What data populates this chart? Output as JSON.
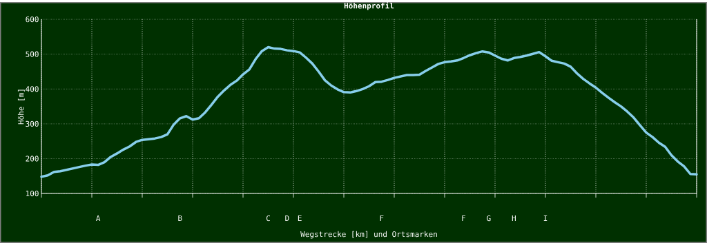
{
  "chart_data": {
    "type": "line",
    "title": "Höhenprofil",
    "xlabel": "Wegstrecke [km] und Ortsmarken",
    "ylabel": "Höhe [m]",
    "categories": [
      null,
      null,
      null,
      null,
      null,
      null,
      null,
      null,
      null,
      "A",
      null,
      null,
      null,
      null,
      null,
      null,
      null,
      null,
      null,
      null,
      null,
      null,
      "B",
      null,
      null,
      null,
      null,
      null,
      null,
      null,
      null,
      null,
      null,
      null,
      null,
      null,
      "C",
      null,
      null,
      "D",
      null,
      "E",
      null,
      null,
      null,
      null,
      null,
      null,
      null,
      null,
      null,
      null,
      null,
      null,
      "F",
      null,
      null,
      null,
      null,
      null,
      null,
      null,
      null,
      null,
      null,
      null,
      null,
      "F",
      null,
      null,
      null,
      "G",
      null,
      null,
      null,
      "H",
      null,
      null,
      null,
      null,
      "I",
      null,
      null,
      null,
      null,
      null,
      null,
      null,
      null,
      null,
      null,
      null,
      null,
      null,
      null,
      null,
      null,
      null,
      null,
      null,
      null,
      null,
      null,
      null,
      null
    ],
    "series": [
      {
        "color": "#87ceeb",
        "values": [
          148,
          152,
          162,
          164,
          168,
          172,
          176,
          180,
          183,
          182,
          190,
          205,
          215,
          226,
          235,
          248,
          254,
          256,
          258,
          262,
          270,
          298,
          316,
          322,
          312,
          316,
          333,
          355,
          378,
          396,
          412,
          424,
          442,
          456,
          486,
          509,
          520,
          516,
          515,
          511,
          509,
          505,
          490,
          473,
          450,
          425,
          410,
          399,
          391,
          390,
          394,
          400,
          408,
          420,
          421,
          426,
          432,
          436,
          440,
          440,
          441,
          452,
          462,
          472,
          477,
          479,
          482,
          489,
          497,
          503,
          508,
          505,
          496,
          487,
          482,
          489,
          492,
          496,
          501,
          506,
          494,
          481,
          477,
          473,
          464,
          445,
          429,
          416,
          404,
          389,
          375,
          362,
          350,
          335,
          318,
          296,
          275,
          262,
          246,
          234,
          210,
          192,
          178,
          156,
          155
        ]
      }
    ],
    "ylim": [
      100,
      600
    ],
    "yticks": [
      100,
      200,
      300,
      400,
      500,
      600
    ],
    "grid": true
  }
}
